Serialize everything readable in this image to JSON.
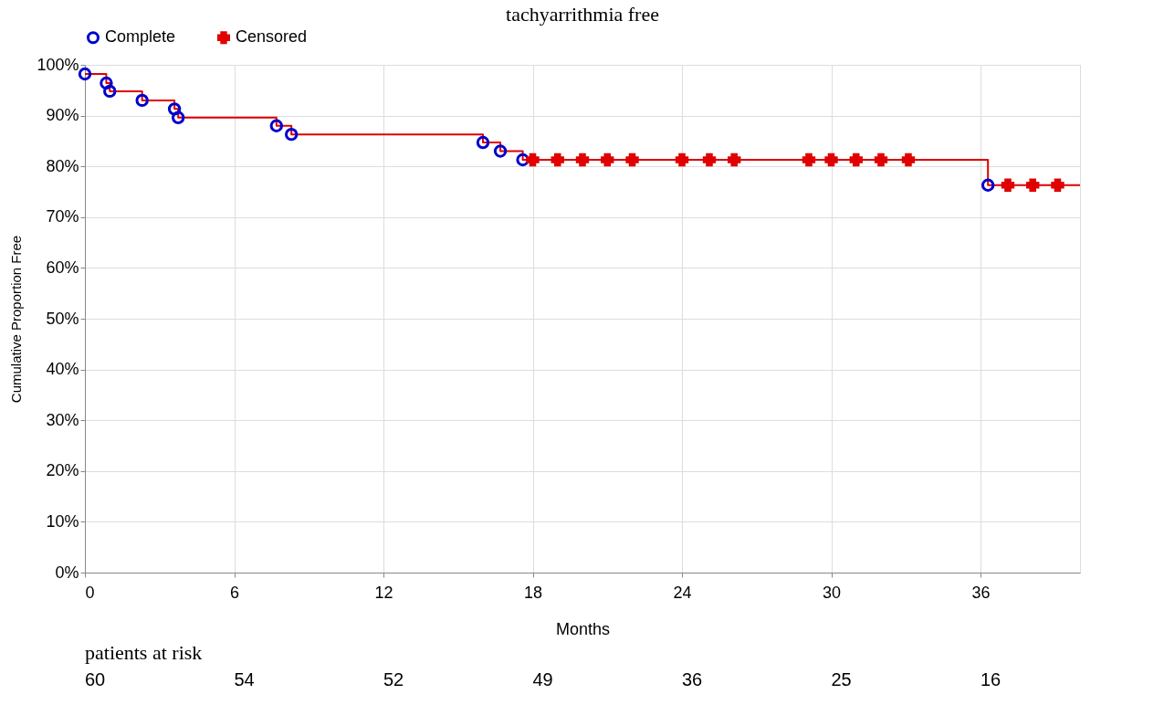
{
  "chart_data": {
    "type": "step",
    "title": "tachyarrithmia free",
    "xlabel": "Months",
    "ylabel": "Cumulative Proportion   Free",
    "xlim": [
      0,
      40
    ],
    "xticks": [
      0,
      6,
      12,
      18,
      24,
      30,
      36
    ],
    "ylim": [
      0,
      100
    ],
    "yticks": [
      {
        "value": 0,
        "label": "0%"
      },
      {
        "value": 10,
        "label": "10%"
      },
      {
        "value": 20,
        "label": "20%"
      },
      {
        "value": 30,
        "label": "30%"
      },
      {
        "value": 40,
        "label": "40%"
      },
      {
        "value": 50,
        "label": "50%"
      },
      {
        "value": 60,
        "label": "60%"
      },
      {
        "value": 70,
        "label": "70%"
      },
      {
        "value": 80,
        "label": "80%"
      },
      {
        "value": 90,
        "label": "90%"
      },
      {
        "value": 100,
        "label": "100%"
      }
    ],
    "grid": true,
    "legend": "top",
    "line_style": "solid",
    "series": [
      {
        "color": "#e00000",
        "marker": "none",
        "x": [
          0,
          0.86,
          1.0,
          2.3,
          3.6,
          3.75,
          7.7,
          8.3,
          16.0,
          16.7,
          17.6,
          36.3,
          40
        ],
        "values": [
          98.2,
          96.4,
          94.8,
          93.0,
          91.3,
          89.6,
          88.0,
          86.3,
          84.7,
          83.0,
          81.3,
          76.3,
          76.3
        ]
      },
      {
        "type": "scatter",
        "name": "Complete",
        "color": "#0000cc",
        "marker": "circle",
        "x": [
          0,
          0.86,
          1.0,
          2.3,
          3.6,
          3.75,
          7.7,
          8.3,
          16.0,
          16.7,
          17.6,
          36.3
        ],
        "values": [
          98.2,
          96.4,
          94.8,
          93.0,
          91.3,
          89.6,
          88.0,
          86.3,
          84.7,
          83.0,
          81.3,
          76.3
        ]
      },
      {
        "type": "scatter",
        "name": "Censored",
        "color": "#e00000",
        "marker": "cross",
        "x": [
          18,
          19,
          20,
          21,
          22,
          24,
          25.1,
          26.1,
          29.1,
          30,
          31,
          32,
          33.1,
          37.1,
          38.1,
          39.1
        ],
        "values": [
          81.3,
          81.3,
          81.3,
          81.3,
          81.3,
          81.3,
          81.3,
          81.3,
          81.3,
          81.3,
          81.3,
          81.3,
          81.3,
          76.3,
          76.3,
          76.3
        ]
      }
    ],
    "annotations": [
      "patients at risk",
      "60",
      "54",
      "52",
      "49",
      "36",
      "25",
      "16"
    ]
  }
}
